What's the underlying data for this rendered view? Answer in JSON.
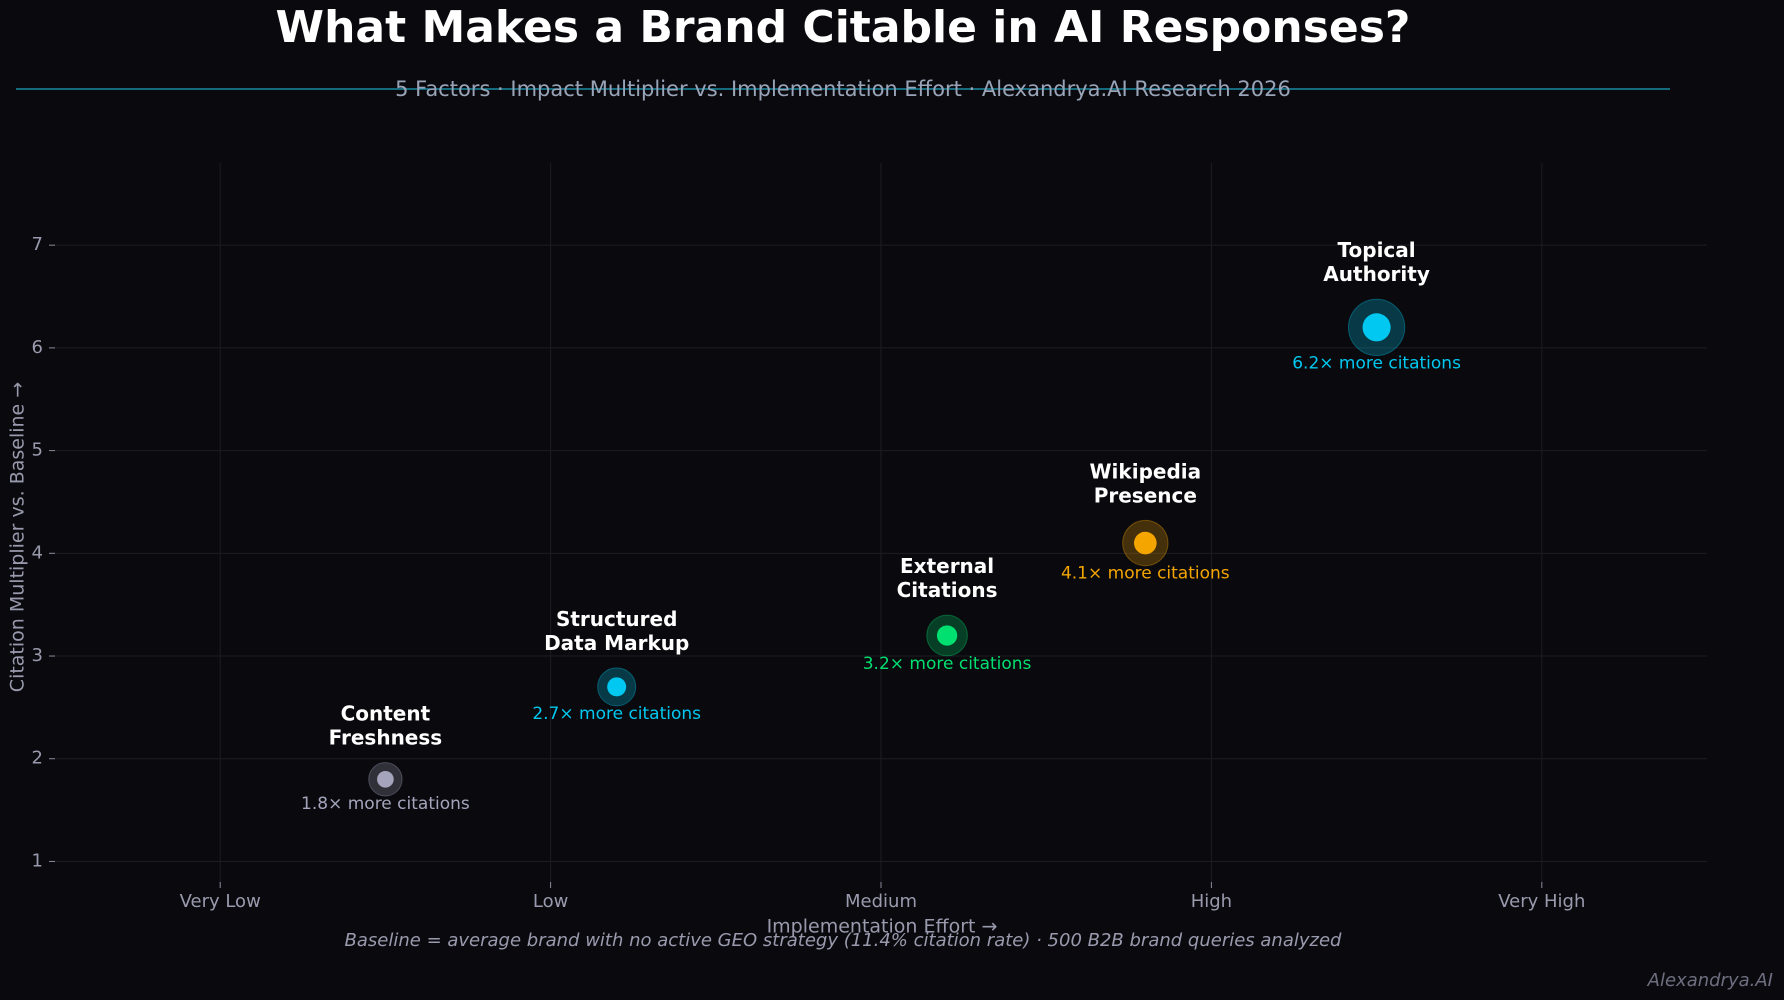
{
  "chart_data": {
    "type": "scatter",
    "title": "What Makes a Brand Citable in AI Responses?",
    "subtitle": "5 Factors · Impact Multiplier vs. Implementation Effort  ·  Alexandrya.AI Research 2026",
    "x_label": "Implementation Effort  →",
    "y_label": "Citation Multiplier vs. Baseline  →",
    "footnote": "Baseline = average brand with no active GEO strategy (11.4% citation rate)  ·  500 B2B brand queries analyzed",
    "watermark": "Alexandrya.AI",
    "xlim": [
      0.5,
      5.5
    ],
    "ylim": [
      0.8,
      7.8
    ],
    "xticks": [
      {
        "value": 1,
        "label": "Very Low"
      },
      {
        "value": 2,
        "label": "Low"
      },
      {
        "value": 3,
        "label": "Medium"
      },
      {
        "value": 4,
        "label": "High"
      },
      {
        "value": 5,
        "label": "Very High"
      }
    ],
    "yticks": [
      1,
      2,
      3,
      4,
      5,
      6,
      7
    ],
    "grid": true,
    "series": [
      {
        "name": "Content\nFreshness",
        "color": "#a4a4bc",
        "x": [
          1.5
        ],
        "values": [
          1.8
        ],
        "value_labels": [
          "1.8× more citations"
        ]
      },
      {
        "name": "Structured\nData Markup",
        "color": "#00c8f0",
        "x": [
          2.2
        ],
        "values": [
          2.7
        ],
        "value_labels": [
          "2.7× more citations"
        ]
      },
      {
        "name": "External\nCitations",
        "color": "#00e070",
        "x": [
          3.2
        ],
        "values": [
          3.2
        ],
        "value_labels": [
          "3.2× more citations"
        ]
      },
      {
        "name": "Wikipedia\nPresence",
        "color": "#f5a500",
        "x": [
          3.8
        ],
        "values": [
          4.1
        ],
        "value_labels": [
          "4.1× more citations"
        ]
      },
      {
        "name": "Topical\nAuthority",
        "color": "#00c8f0",
        "x": [
          4.5
        ],
        "values": [
          6.2
        ],
        "value_labels": [
          "6.2× more citations"
        ]
      }
    ]
  }
}
